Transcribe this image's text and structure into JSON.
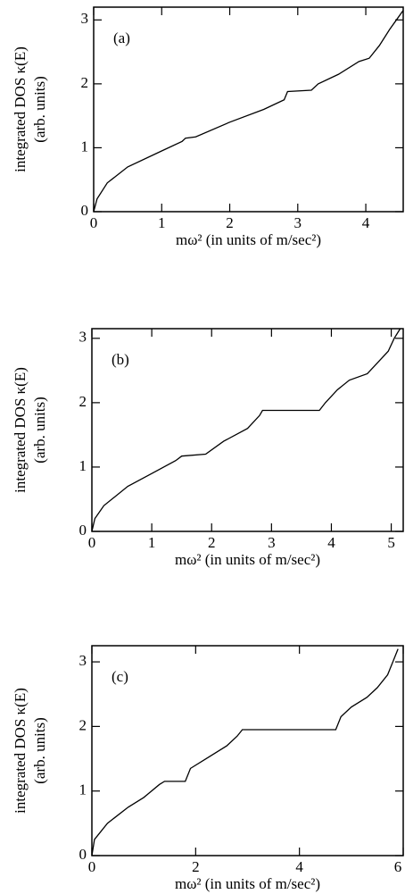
{
  "chart_data": [
    {
      "type": "line",
      "annotation": "(a)",
      "ylabel": [
        "integrated DOS κ(E)",
        "(arb. units)"
      ],
      "xlabel": "mω² (in units of m/sec²)",
      "xlim": [
        0,
        4.55
      ],
      "xticks": [
        0,
        1,
        2,
        3,
        4
      ],
      "ylim": [
        0,
        3.2
      ],
      "yticks": [
        0,
        1,
        2,
        3
      ],
      "series": [
        {
          "color": "#000000",
          "x": [
            0,
            0.05,
            0.2,
            0.5,
            1,
            1.3,
            1.35,
            1.5,
            2,
            2.5,
            2.8,
            2.85,
            3.2,
            3.3,
            3.6,
            3.9,
            4.05,
            4.2,
            4.35,
            4.45,
            4.55
          ],
          "values": [
            0,
            0.2,
            0.45,
            0.7,
            0.95,
            1.1,
            1.15,
            1.17,
            1.4,
            1.6,
            1.75,
            1.88,
            1.9,
            2.0,
            2.15,
            2.35,
            2.4,
            2.6,
            2.85,
            3.0,
            3.15
          ]
        }
      ]
    },
    {
      "type": "line",
      "annotation": "(b)",
      "ylabel": [
        "integrated DOS κ(E)",
        "(arb. units)"
      ],
      "xlabel": "mω² (in units of m/sec²)",
      "xlim": [
        0,
        5.2
      ],
      "xticks": [
        0,
        1,
        2,
        3,
        4,
        5
      ],
      "ylim": [
        0,
        3.15
      ],
      "yticks": [
        0,
        1,
        2,
        3
      ],
      "series": [
        {
          "color": "#000000",
          "x": [
            0,
            0.05,
            0.2,
            0.6,
            1.0,
            1.4,
            1.5,
            1.9,
            2.2,
            2.6,
            2.8,
            2.85,
            3.8,
            3.9,
            4.1,
            4.3,
            4.6,
            4.8,
            4.95,
            5.05,
            5.15
          ],
          "values": [
            0,
            0.2,
            0.4,
            0.7,
            0.9,
            1.1,
            1.17,
            1.2,
            1.4,
            1.6,
            1.8,
            1.88,
            1.88,
            2.0,
            2.2,
            2.35,
            2.45,
            2.65,
            2.8,
            3.0,
            3.15
          ]
        }
      ]
    },
    {
      "type": "line",
      "annotation": "(c)",
      "ylabel": [
        "integrated DOS κ(E)",
        "(arb. units)"
      ],
      "xlabel": "mω² (in units of m/sec²)",
      "xlim": [
        0,
        6
      ],
      "xticks": [
        0,
        2,
        4,
        6
      ],
      "ylim": [
        0,
        3.25
      ],
      "yticks": [
        0,
        1,
        2,
        3
      ],
      "series": [
        {
          "color": "#000000",
          "x": [
            0,
            0.05,
            0.3,
            0.7,
            1.0,
            1.3,
            1.4,
            1.8,
            1.9,
            2.2,
            2.6,
            2.8,
            2.9,
            4.7,
            4.8,
            5.0,
            5.3,
            5.5,
            5.7,
            5.8,
            5.9
          ],
          "values": [
            0,
            0.25,
            0.5,
            0.75,
            0.9,
            1.1,
            1.15,
            1.15,
            1.35,
            1.5,
            1.7,
            1.85,
            1.95,
            1.95,
            2.15,
            2.3,
            2.45,
            2.6,
            2.8,
            3.0,
            3.2
          ]
        }
      ]
    }
  ]
}
